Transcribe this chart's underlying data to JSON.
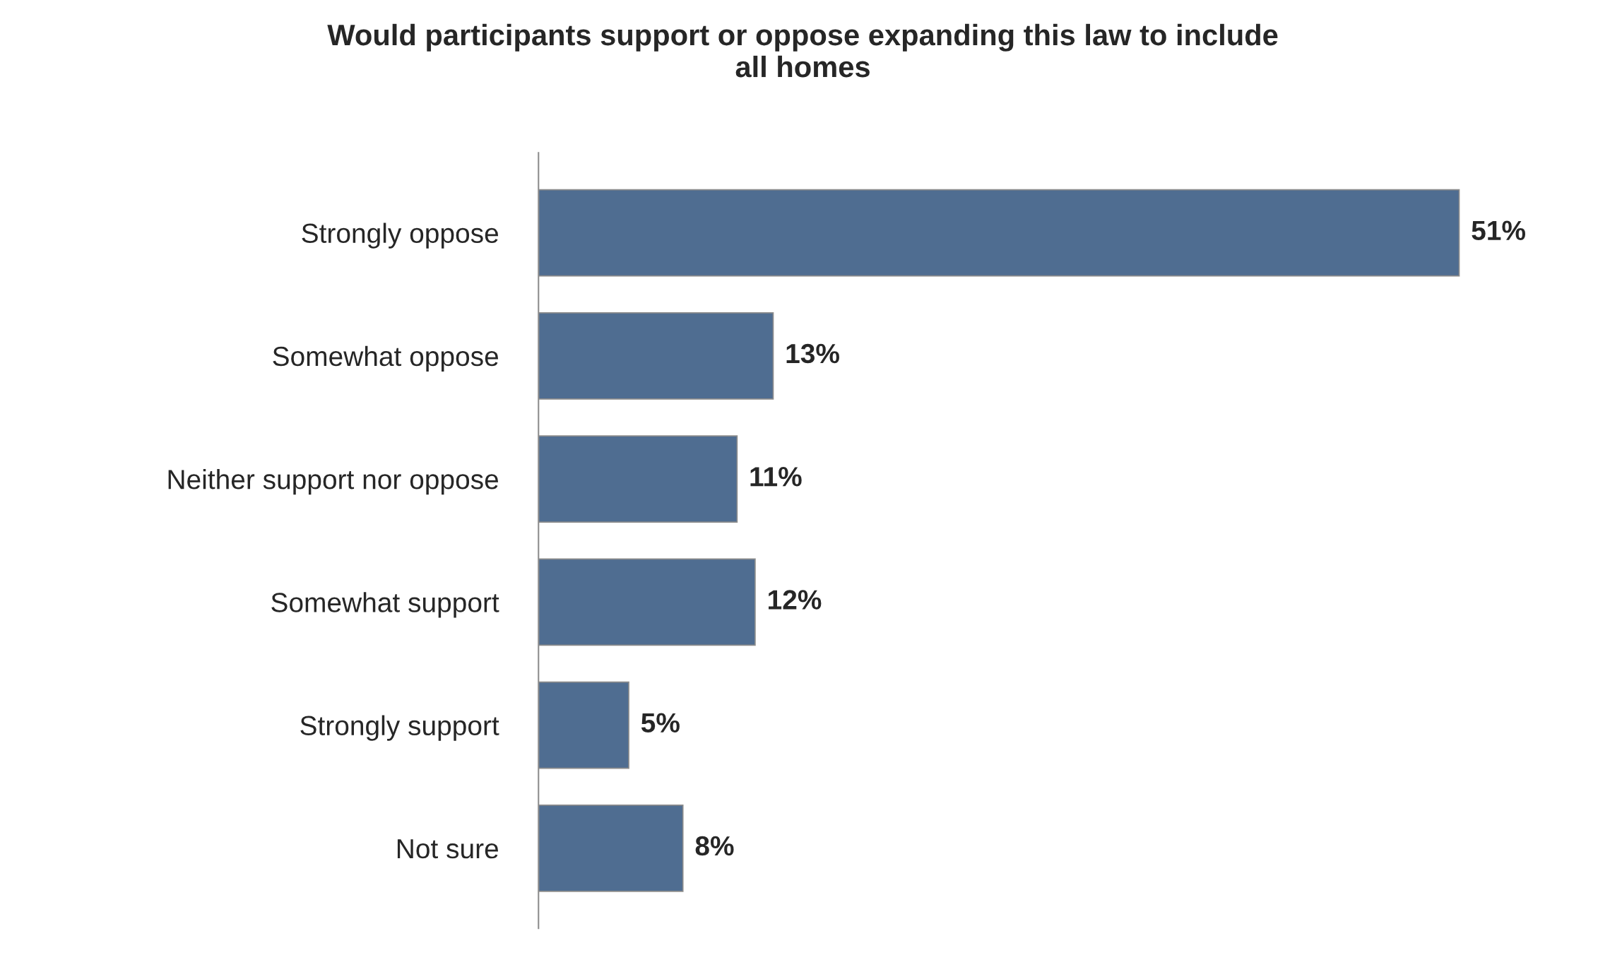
{
  "chart_data": {
    "type": "bar",
    "orientation": "horizontal",
    "title": "Would participants support or oppose expanding this law to include all homes",
    "categories": [
      "Strongly oppose",
      "Somewhat oppose",
      "Neither support nor oppose",
      "Somewhat support",
      "Strongly support",
      "Not sure"
    ],
    "values": [
      51,
      13,
      11,
      12,
      5,
      8
    ],
    "value_labels": [
      "51%",
      "13%",
      "11%",
      "12%",
      "5%",
      "8%"
    ],
    "color": "#4f6d91",
    "tick_labels": "y",
    "grid": false,
    "legend": false
  }
}
